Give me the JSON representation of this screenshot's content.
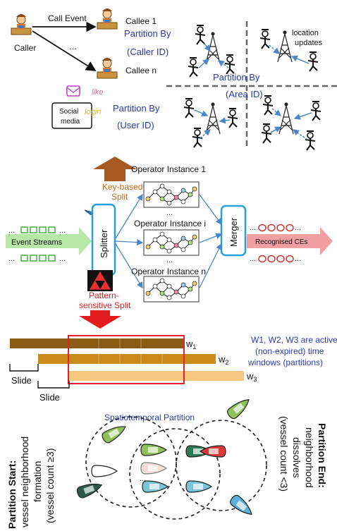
{
  "panel1": {
    "caller": "Caller",
    "call_event": "Call Event",
    "callee1": "Callee 1",
    "callee_n": "Callee n",
    "ellipsis": "...",
    "partition_caller_a": "Partition By",
    "partition_caller_b": "(Caller ID)",
    "partition_user_a": "Partition By",
    "partition_user_b": "(User ID)",
    "social_a": "Social",
    "social_b": "media",
    "like": "like",
    "login": "login"
  },
  "panel2": {
    "location_updates_a": "location",
    "location_updates_b": "updates",
    "partition_area_a": "Partition By",
    "partition_area_b": "(Area ID)"
  },
  "panel3": {
    "operator_1": "Operator Instance 1",
    "operator_i": "Operator Instance i",
    "operator_n": "Operator Instance n",
    "key_split_a": "Key-based",
    "key_split_b": "Split",
    "splitter": "Splitter",
    "merger": "Merger",
    "event_streams": "Event Streams",
    "recognised": "Recognised CEs",
    "pattern_split_a": "Pattern-",
    "pattern_split_b": "sensitive Split",
    "dots": "..."
  },
  "panel4": {
    "w1_base": "w",
    "w1_sub": "1",
    "w2_base": "w",
    "w2_sub": "2",
    "w3_base": "w",
    "w3_sub": "3",
    "slide1": "Slide",
    "slide2": "Slide",
    "desc_a": "W1, W2, W3 are active",
    "desc_b": "(non-expired) time",
    "desc_c": "windows (partitions)",
    "colors": {
      "w1": "#8a5a12",
      "w2": "#c98a18",
      "w3": "#f8c880",
      "highlight": "#e8202a"
    }
  },
  "panel5": {
    "title": "Spatiotemporal Partition",
    "start_bold": "Partition Start:",
    "start_b": "vessel neighborhood",
    "start_c": "formation",
    "start_d": "(vessel count ≥3)",
    "end_bold": "Partition End:",
    "end_b": "neighborhood",
    "end_c": "dissolves",
    "end_d": "(vessel count <3)"
  }
}
